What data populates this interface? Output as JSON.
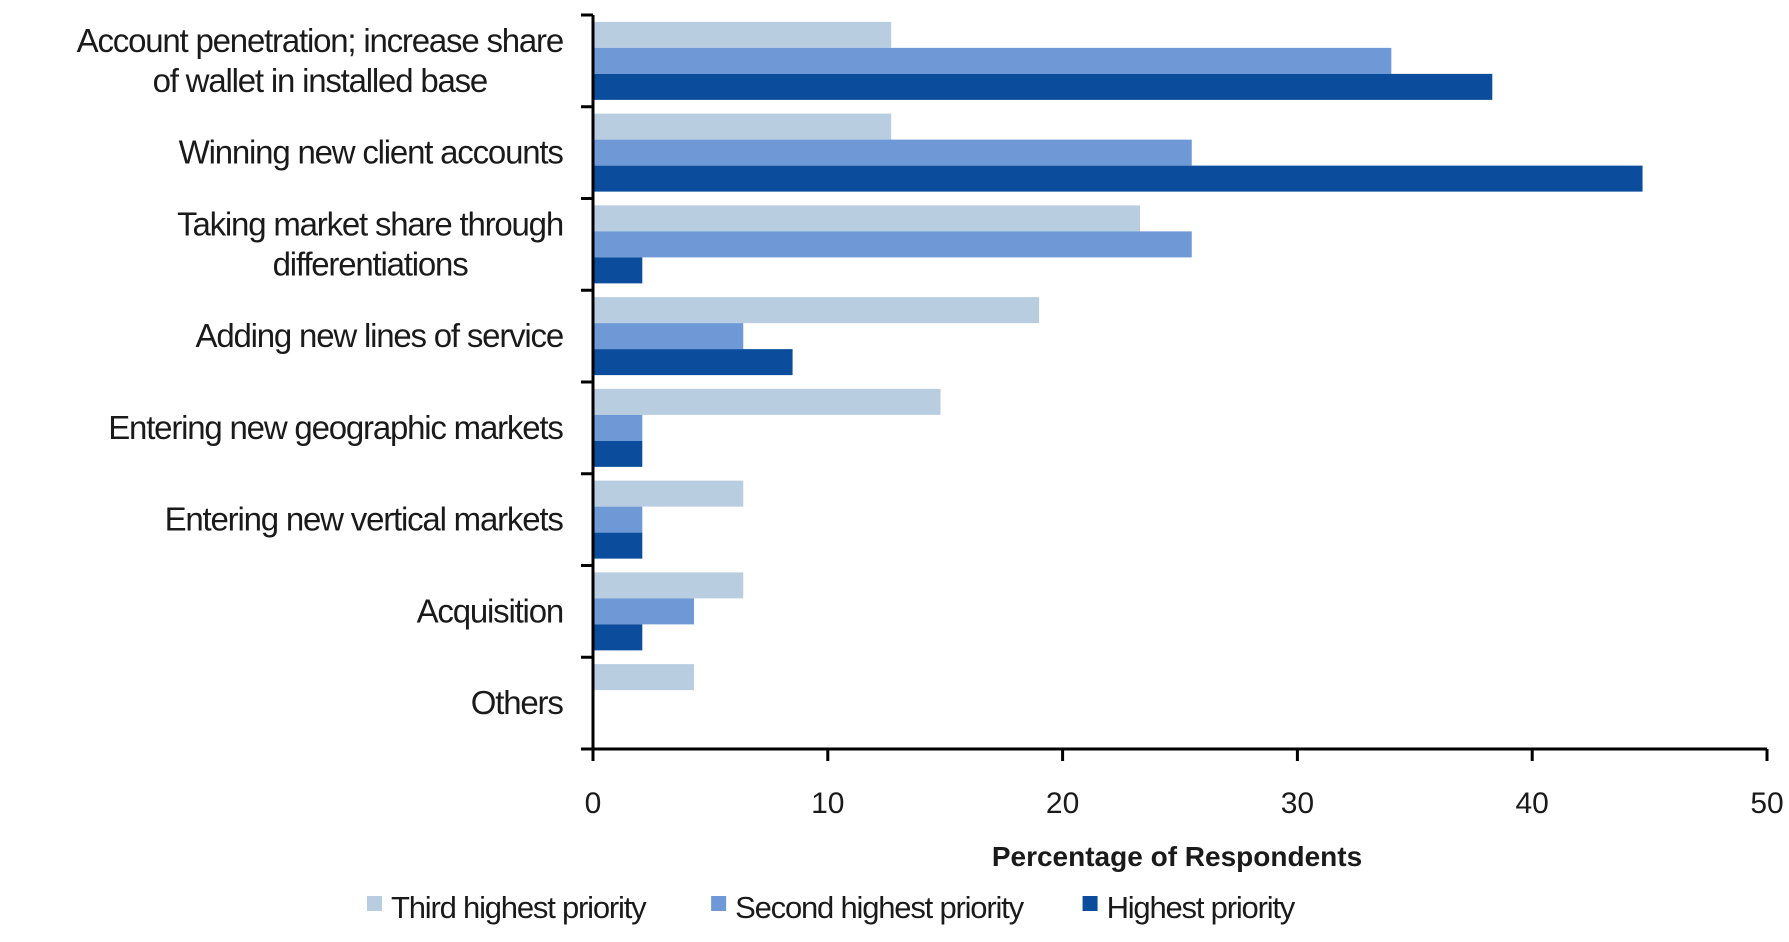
{
  "chart_data": {
    "type": "bar",
    "orientation": "horizontal",
    "categories": [
      [
        "Account penetration; increase share",
        "of wallet in installed base"
      ],
      [
        "Winning new client accounts"
      ],
      [
        "Taking market share through",
        "differentiations"
      ],
      [
        "Adding new lines of service"
      ],
      [
        "Entering new geographic markets"
      ],
      [
        "Entering new vertical markets"
      ],
      [
        "Acquisition"
      ],
      [
        "Others"
      ]
    ],
    "series": [
      {
        "name": "Third highest priority",
        "color": "#b8cde0",
        "values": [
          12.7,
          12.7,
          23.3,
          19.0,
          14.8,
          6.4,
          6.4,
          4.3
        ]
      },
      {
        "name": "Second highest priority",
        "color": "#6e98d6",
        "values": [
          34.0,
          25.5,
          25.5,
          6.4,
          2.1,
          2.1,
          4.3,
          0
        ]
      },
      {
        "name": "Highest priority",
        "color": "#0b4d9c",
        "values": [
          38.3,
          44.7,
          2.1,
          8.5,
          2.1,
          2.1,
          2.1,
          0
        ]
      }
    ],
    "xlim": [
      0,
      50
    ],
    "xticks": [
      0,
      10,
      20,
      30,
      40,
      50
    ],
    "xlabel": "Percentage of Respondents",
    "ylabel": "",
    "title": "",
    "grid": false,
    "legend_position": "bottom"
  }
}
